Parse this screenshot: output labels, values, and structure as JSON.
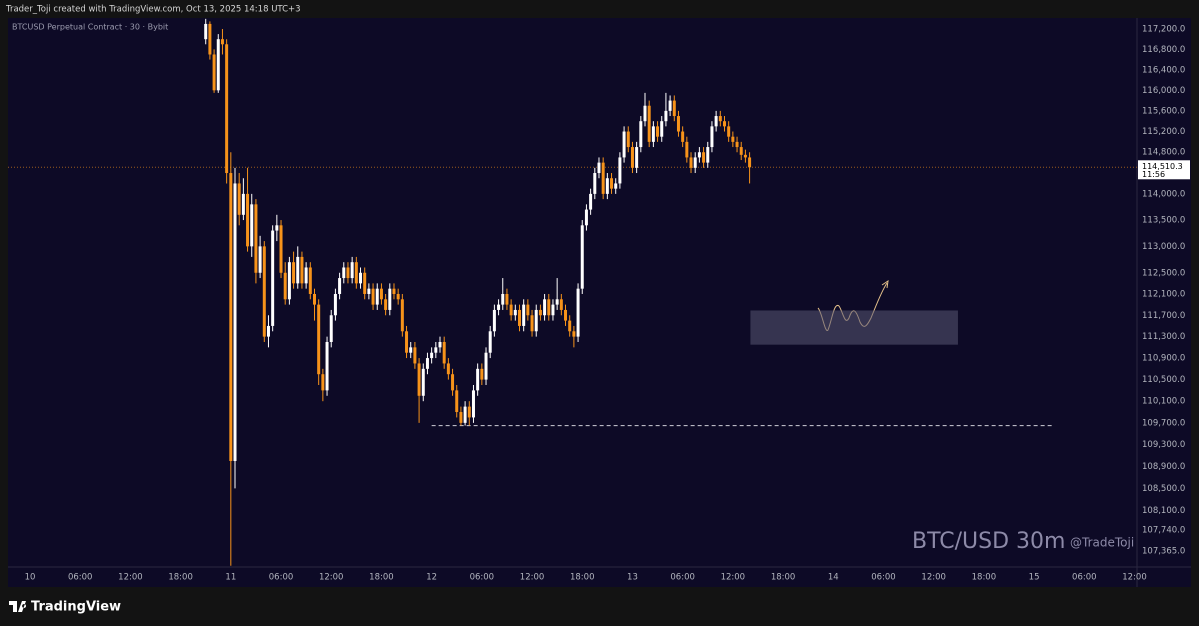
{
  "header": "Trader_Toji created with TradingView.com, Oct 13, 2025 14:18 UTC+3",
  "footer": {
    "brand": "TradingView"
  },
  "chart_data": {
    "type": "candlestick",
    "title": "BTCUSD Perpetual Contract · 30 · Bybit",
    "watermark": "BTC/USD 30m",
    "author": "@TradeToji",
    "log_scale": true,
    "grid": false,
    "ylim": [
      107077,
      117417
    ],
    "yticks": [
      {
        "value": 117200,
        "label": "117,200.0"
      },
      {
        "value": 116800,
        "label": "116,800.0"
      },
      {
        "value": 116400,
        "label": "116,400.0"
      },
      {
        "value": 116000,
        "label": "116,000.0"
      },
      {
        "value": 115600,
        "label": "115,600.0"
      },
      {
        "value": 115200,
        "label": "115,200.0"
      },
      {
        "value": 114800,
        "label": "114,800.0"
      },
      {
        "value": 114000,
        "label": "114,000.0"
      },
      {
        "value": 113500,
        "label": "113,500.0"
      },
      {
        "value": 113000,
        "label": "113,000.0"
      },
      {
        "value": 112500,
        "label": "112,500.0"
      },
      {
        "value": 112100,
        "label": "112,100.0"
      },
      {
        "value": 111700,
        "label": "111,700.0"
      },
      {
        "value": 111300,
        "label": "111,300.0"
      },
      {
        "value": 110900,
        "label": "110,900.0"
      },
      {
        "value": 110500,
        "label": "110,500.0"
      },
      {
        "value": 110100,
        "label": "110,100.0"
      },
      {
        "value": 109700,
        "label": "109,700.0"
      },
      {
        "value": 109300,
        "label": "109,300.0"
      },
      {
        "value": 108900,
        "label": "108,900.0"
      },
      {
        "value": 108500,
        "label": "108,500.0"
      },
      {
        "value": 108100,
        "label": "108,100.0"
      },
      {
        "value": 107740,
        "label": "107,740.0"
      },
      {
        "value": 107365,
        "label": "107,365.0"
      }
    ],
    "xlim": [
      -2.63,
      132.3
    ],
    "xticks": [
      {
        "value": 0,
        "label": "10"
      },
      {
        "value": 6,
        "label": "06:00"
      },
      {
        "value": 12,
        "label": "12:00"
      },
      {
        "value": 18,
        "label": "18:00"
      },
      {
        "value": 24,
        "label": "11"
      },
      {
        "value": 30,
        "label": "06:00"
      },
      {
        "value": 36,
        "label": "12:00"
      },
      {
        "value": 42,
        "label": "18:00"
      },
      {
        "value": 48,
        "label": "12"
      },
      {
        "value": 54,
        "label": "06:00"
      },
      {
        "value": 60,
        "label": "12:00"
      },
      {
        "value": 66,
        "label": "18:00"
      },
      {
        "value": 72,
        "label": "13"
      },
      {
        "value": 78,
        "label": "06:00"
      },
      {
        "value": 84,
        "label": "12:00"
      },
      {
        "value": 90,
        "label": "18:00"
      },
      {
        "value": 96,
        "label": "14"
      },
      {
        "value": 102,
        "label": "06:00"
      },
      {
        "value": 108,
        "label": "12:00"
      },
      {
        "value": 114,
        "label": "18:00"
      },
      {
        "value": 120,
        "label": "15"
      },
      {
        "value": 126,
        "label": "06:00"
      },
      {
        "value": 132,
        "label": "12:00"
      }
    ],
    "up_color": "#ffffff",
    "down_color": "#f7931a",
    "last_price": {
      "value": 114510.3,
      "label": "114,510.3",
      "countdown": "11:56"
    },
    "support": {
      "price": 109650,
      "x": [
        48,
        122.3
      ]
    },
    "zone": {
      "top": 111790,
      "bottom": 111150,
      "x": [
        86.1,
        110.9
      ]
    },
    "x": [
      21,
      21.5,
      22,
      22.5,
      23,
      23.5,
      24,
      24.5,
      25,
      25.5,
      26,
      26.5,
      27,
      27.5,
      28,
      28.5,
      29,
      29.5,
      30,
      30.5,
      31,
      31.5,
      32,
      32.5,
      33,
      33.5,
      34,
      34.5,
      35,
      35.5,
      36,
      36.5,
      37,
      37.5,
      38,
      38.5,
      39,
      39.5,
      40,
      40.5,
      41,
      41.5,
      42,
      42.5,
      43,
      43.5,
      44,
      44.5,
      45,
      45.5,
      46,
      46.5,
      47,
      47.5,
      48,
      48.5,
      49,
      49.5,
      50,
      50.5,
      51,
      51.5,
      52,
      52.5,
      53,
      53.5,
      54,
      54.5,
      55,
      55.5,
      56,
      56.5,
      57,
      57.5,
      58,
      58.5,
      59,
      59.5,
      60,
      60.5,
      61,
      61.5,
      62,
      62.5,
      63,
      63.5,
      64,
      64.5,
      65,
      65.5,
      66,
      66.5,
      67,
      67.5,
      68,
      68.5,
      69,
      69.5,
      70,
      70.5,
      71,
      71.5,
      72,
      72.5,
      73,
      73.5,
      74,
      74.5,
      75,
      75.5,
      76,
      76.5,
      77,
      77.5,
      78,
      78.5,
      79,
      79.5,
      80,
      80.5,
      81,
      81.5,
      82,
      82.5,
      83,
      83.5,
      84,
      84.5,
      85,
      85.5,
      86
    ],
    "open": [
      117000,
      117300,
      116700,
      116000,
      117000,
      116900,
      114400,
      109000,
      114200,
      113600,
      114000,
      113000,
      113800,
      112500,
      113000,
      111300,
      111500,
      113300,
      113400,
      112500,
      112000,
      112700,
      112300,
      112800,
      112300,
      112600,
      112100,
      111900,
      110600,
      110300,
      111200,
      111700,
      112100,
      112400,
      112600,
      112400,
      112700,
      112300,
      112500,
      112100,
      112200,
      111900,
      112200,
      112000,
      111800,
      112200,
      112100,
      112000,
      111400,
      111000,
      111100,
      110800,
      110200,
      110700,
      110900,
      111000,
      111100,
      111200,
      110800,
      110600,
      110300,
      109900,
      109700,
      110000,
      109800,
      110300,
      110700,
      110500,
      111000,
      111400,
      111800,
      111900,
      112100,
      111900,
      111700,
      111800,
      111500,
      111900,
      111700,
      111400,
      111800,
      111700,
      112000,
      111700,
      111900,
      112000,
      111800,
      111600,
      111400,
      111300,
      112200,
      113400,
      113700,
      114000,
      114400,
      114600,
      114000,
      114300,
      114100,
      114200,
      114700,
      115200,
      114900,
      114500,
      114900,
      115400,
      115700,
      115000,
      115300,
      115100,
      115400,
      115600,
      115800,
      115500,
      115200,
      115000,
      114700,
      114500,
      114700,
      114800,
      114600,
      114900,
      115300,
      115500,
      115400,
      115300,
      115100,
      115000,
      114900,
      114750,
      114700
    ],
    "high": [
      117400,
      117350,
      116800,
      117100,
      117200,
      117000,
      114800,
      114500,
      114400,
      114300,
      114500,
      114000,
      113900,
      113200,
      113100,
      111700,
      113400,
      113600,
      113500,
      112700,
      112800,
      112900,
      113000,
      112900,
      112700,
      112700,
      112200,
      112000,
      110700,
      111300,
      111800,
      112200,
      112500,
      112700,
      112700,
      112800,
      112800,
      112600,
      112600,
      112300,
      112300,
      112300,
      112300,
      112100,
      112300,
      112300,
      112200,
      112100,
      111500,
      111200,
      111200,
      110900,
      110800,
      111000,
      111100,
      111200,
      111300,
      111300,
      110900,
      110700,
      110400,
      110000,
      110100,
      110100,
      110400,
      110800,
      110800,
      111100,
      111500,
      111900,
      112000,
      112400,
      112200,
      112000,
      111900,
      111900,
      112000,
      112000,
      111800,
      111900,
      111900,
      112100,
      112100,
      112000,
      112400,
      112100,
      111900,
      111700,
      111500,
      112300,
      113500,
      113800,
      114100,
      114500,
      114700,
      114700,
      114400,
      114400,
      114300,
      114800,
      115300,
      115300,
      115000,
      115000,
      115500,
      115950,
      115800,
      115400,
      115400,
      115500,
      115950,
      115900,
      115900,
      115600,
      115300,
      115100,
      114800,
      114800,
      114900,
      114900,
      115000,
      115400,
      115600,
      115600,
      115500,
      115400,
      115200,
      115100,
      115000,
      114850,
      114800
    ],
    "low": [
      116900,
      116600,
      115950,
      115950,
      116700,
      114200,
      107100,
      108500,
      113400,
      113500,
      112900,
      112800,
      112300,
      112400,
      111200,
      111100,
      111400,
      113100,
      112400,
      111900,
      111900,
      112200,
      112200,
      112200,
      112200,
      112000,
      111600,
      110400,
      110100,
      110200,
      111100,
      111600,
      112000,
      112300,
      112300,
      112300,
      112200,
      112200,
      112000,
      112000,
      111800,
      111800,
      111900,
      111700,
      111700,
      112000,
      111900,
      111300,
      110900,
      110900,
      110700,
      109700,
      110100,
      110600,
      110800,
      110900,
      111000,
      110700,
      110500,
      110200,
      109800,
      109650,
      109650,
      109650,
      109700,
      110200,
      110400,
      110400,
      110900,
      111300,
      111700,
      111800,
      111800,
      111600,
      111600,
      111400,
      111400,
      111600,
      111300,
      111300,
      111600,
      111600,
      111600,
      111600,
      111800,
      111700,
      111500,
      111300,
      111100,
      111200,
      112100,
      113300,
      113600,
      113900,
      114300,
      113900,
      113900,
      114000,
      114000,
      114100,
      114600,
      114800,
      114400,
      114400,
      114800,
      115300,
      114900,
      114900,
      115000,
      115000,
      115300,
      115500,
      115400,
      115100,
      114900,
      114600,
      114400,
      114400,
      114600,
      114500,
      114500,
      114800,
      115200,
      115300,
      115200,
      115000,
      114900,
      114800,
      114650,
      114600,
      114200
    ],
    "close": [
      117300,
      116700,
      116000,
      117000,
      116900,
      114400,
      109000,
      114200,
      113600,
      114000,
      113000,
      113800,
      112500,
      113000,
      111300,
      111500,
      113300,
      113400,
      112500,
      112000,
      112700,
      112300,
      112800,
      112300,
      112600,
      112100,
      111900,
      110600,
      110300,
      111200,
      111700,
      112100,
      112400,
      112600,
      112400,
      112700,
      112300,
      112500,
      112100,
      112200,
      111900,
      112200,
      112000,
      111800,
      112200,
      112100,
      112000,
      111400,
      111000,
      111100,
      110800,
      110200,
      110700,
      110900,
      111000,
      111100,
      111200,
      110800,
      110600,
      110300,
      109900,
      109700,
      110000,
      109800,
      110300,
      110700,
      110500,
      111000,
      111400,
      111800,
      111900,
      112100,
      111900,
      111700,
      111800,
      111500,
      111900,
      111700,
      111400,
      111800,
      111700,
      112000,
      111700,
      111900,
      112000,
      111800,
      111600,
      111400,
      111300,
      112200,
      113400,
      113700,
      114000,
      114400,
      114600,
      114000,
      114300,
      114100,
      114200,
      114700,
      115200,
      114900,
      114500,
      114900,
      115400,
      115700,
      115000,
      115300,
      115100,
      115400,
      115600,
      115800,
      115500,
      115200,
      115000,
      114700,
      114500,
      114700,
      114800,
      114600,
      114900,
      115300,
      115500,
      115400,
      115300,
      115100,
      115000,
      114900,
      114750,
      114700,
      114510
    ]
  }
}
